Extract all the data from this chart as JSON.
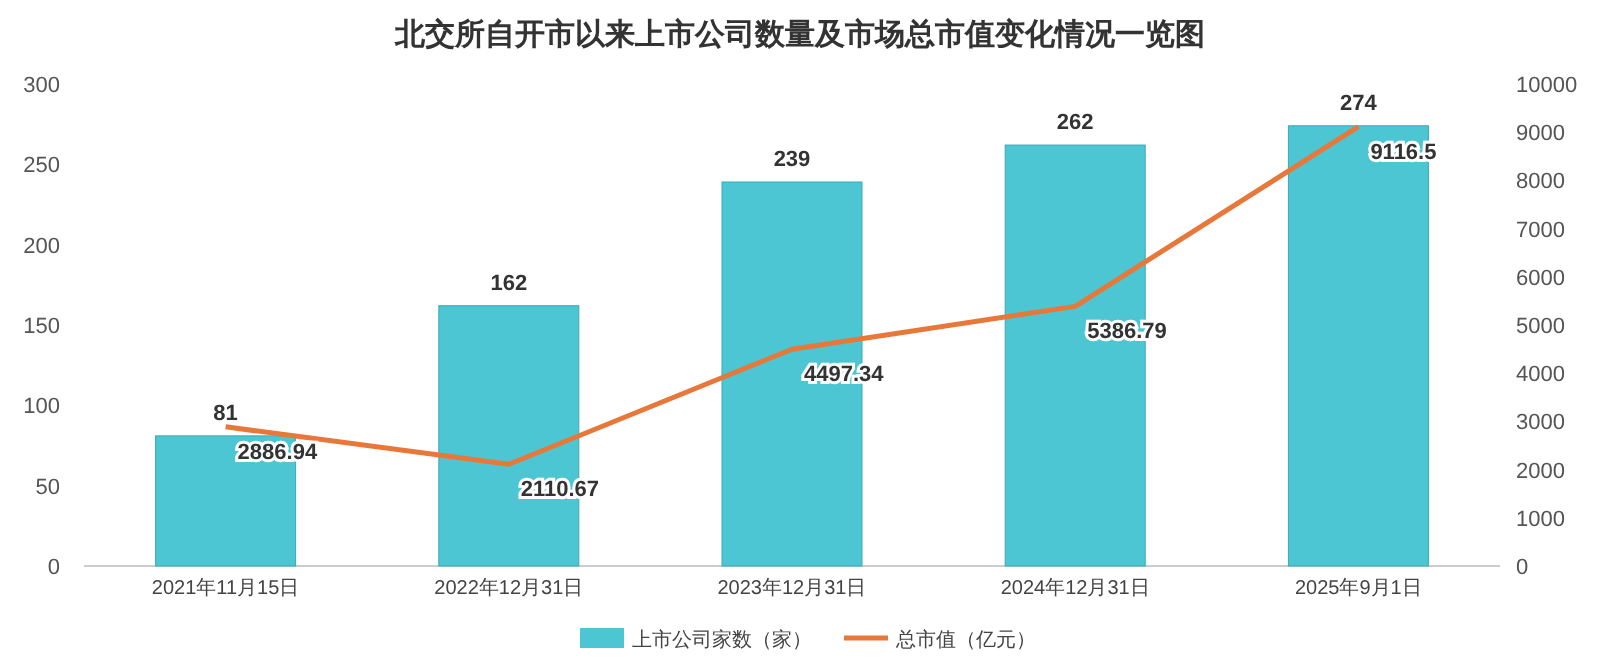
{
  "chart_data": {
    "type": "bar",
    "title": "北交所自开市以来上市公司数量及市场总市值变化情况一览图",
    "categories": [
      "2021年11月15日",
      "2022年12月31日",
      "2023年12月31日",
      "2024年12月31日",
      "2025年9月1日"
    ],
    "series": [
      {
        "name": "上市公司家数（家）",
        "color": "#4cc6d2",
        "values": [
          81,
          162,
          239,
          262,
          274
        ]
      },
      {
        "name": "总市值（亿元）",
        "type": "line",
        "axis": "y2",
        "color": "#e8773a",
        "values": [
          2886.94,
          2110.67,
          4497.34,
          5386.79,
          9116.5
        ]
      }
    ],
    "ylim": [
      0,
      300
    ],
    "yticks": [
      0,
      50,
      100,
      150,
      200,
      250,
      300
    ],
    "y2lim": [
      0,
      10000
    ],
    "y2ticks": [
      0,
      1000,
      2000,
      3000,
      4000,
      5000,
      6000,
      7000,
      8000,
      9000,
      10000
    ],
    "data_labels": true,
    "legend": "bottom",
    "grid": false,
    "marker": "none",
    "line_style": "solid"
  }
}
